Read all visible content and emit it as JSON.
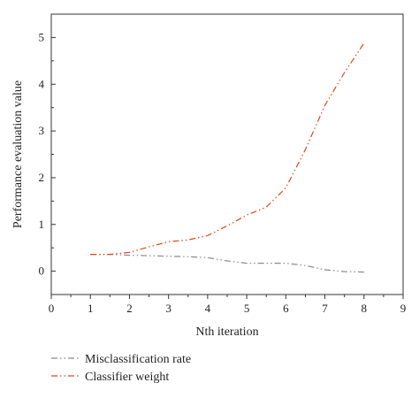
{
  "chart_data": {
    "type": "line",
    "title": "",
    "xlabel": "Nth iteration",
    "ylabel": "Performance evaluation value",
    "xlim": [
      0,
      9
    ],
    "ylim": [
      -0.5,
      5.5
    ],
    "x_ticks": [
      "0",
      "1",
      "2",
      "3",
      "4",
      "5",
      "6",
      "7",
      "8",
      "9"
    ],
    "y_ticks": [
      "0",
      "1",
      "2",
      "3",
      "4",
      "5"
    ],
    "grid": false,
    "legend_position": "bottom-left",
    "series": [
      {
        "name": "Misclassification rate",
        "color": "#8a8a8a",
        "line_style": "dash-dot-dot",
        "x": [
          1,
          1.5,
          2,
          2.5,
          3,
          3.5,
          4,
          4.5,
          5,
          5.5,
          6,
          6.5,
          7,
          7.5,
          8
        ],
        "y": [
          0.36,
          0.36,
          0.34,
          0.33,
          0.32,
          0.31,
          0.29,
          0.22,
          0.17,
          0.17,
          0.17,
          0.12,
          0.03,
          -0.01,
          -0.02
        ]
      },
      {
        "name": "Classifier weight",
        "color": "#d94a1e",
        "line_style": "dash-dot-dot",
        "x": [
          1,
          1.5,
          2,
          2.5,
          3,
          3.5,
          4,
          4.5,
          5,
          5.5,
          6,
          6.5,
          7,
          7.5,
          8
        ],
        "y": [
          0.36,
          0.36,
          0.4,
          0.52,
          0.63,
          0.67,
          0.76,
          0.97,
          1.2,
          1.37,
          1.78,
          2.6,
          3.55,
          4.25,
          4.88
        ]
      }
    ]
  }
}
